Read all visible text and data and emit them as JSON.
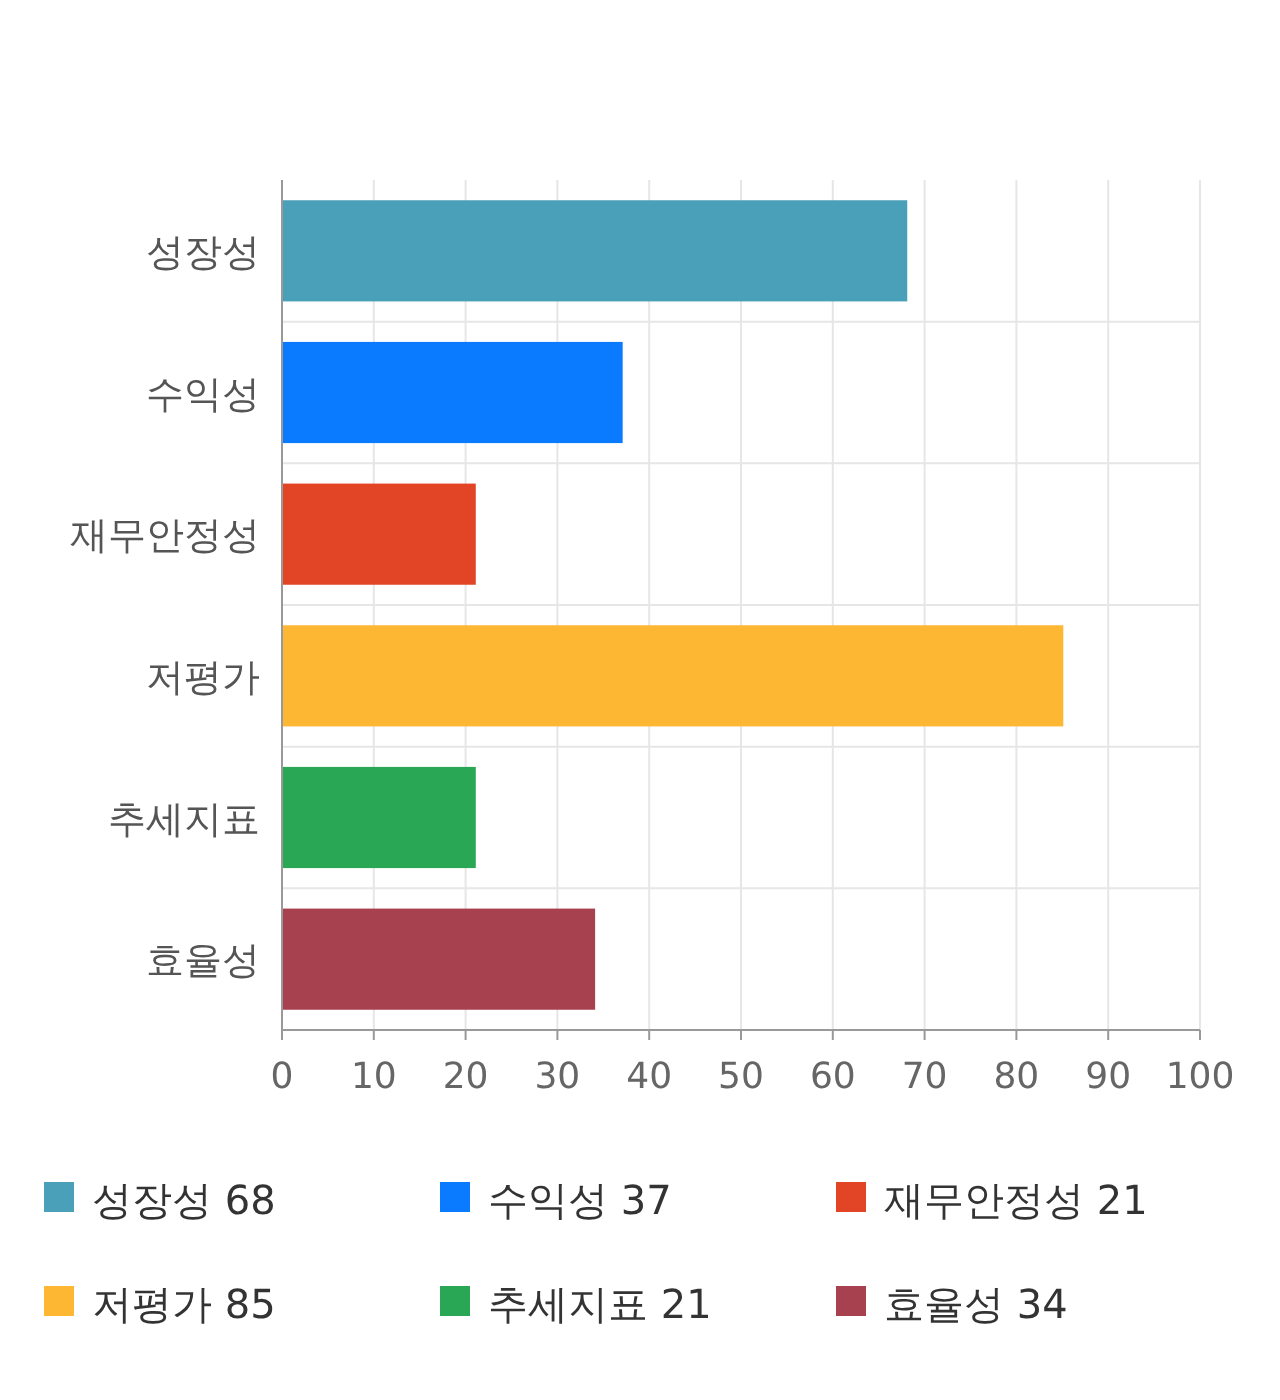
{
  "chart_data": {
    "type": "bar",
    "orientation": "horizontal",
    "categories": [
      "성장성",
      "수익성",
      "재무안정성",
      "저평가",
      "추세지표",
      "효율성"
    ],
    "values": [
      68,
      37,
      21,
      85,
      21,
      34
    ],
    "colors": [
      "#4aa0b8",
      "#0a7bff",
      "#e24426",
      "#fdb733",
      "#2aa754",
      "#a8414f"
    ],
    "xlim": [
      0,
      100
    ],
    "xticks": [
      0,
      10,
      20,
      30,
      40,
      50,
      60,
      70,
      80,
      90,
      100
    ],
    "grid": true,
    "annotations": [
      "성장성 68",
      "수익성 37",
      "재무안정성 21",
      "저평가 85",
      "추세지표 21",
      "효율성 34"
    ]
  }
}
